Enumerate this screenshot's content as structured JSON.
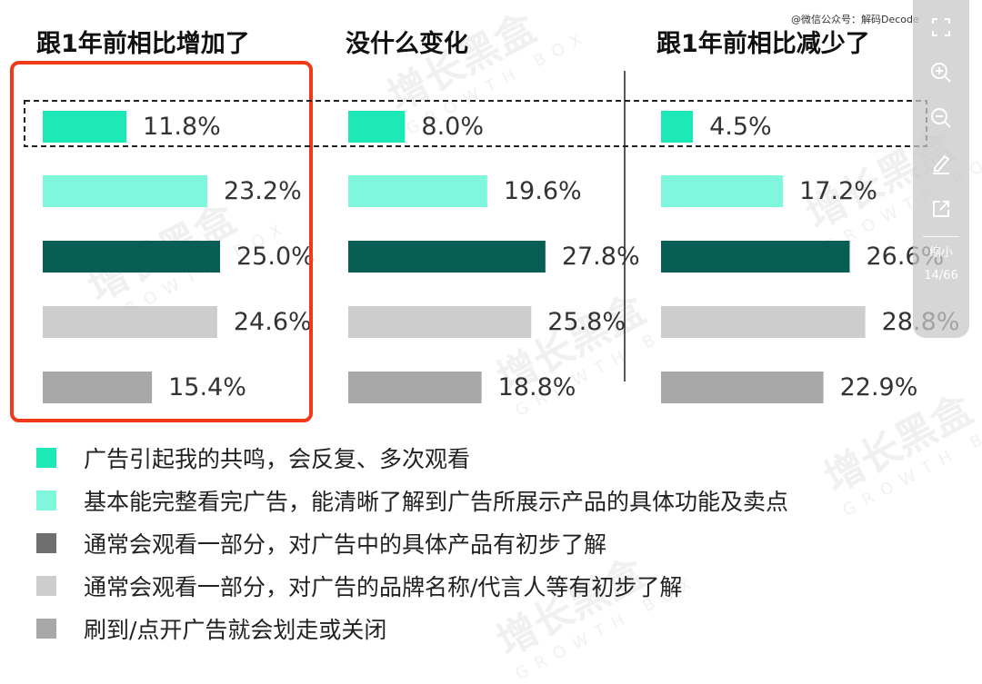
{
  "credit_text": "@微信公众号：解码Decode",
  "watermark": {
    "cn": "增长黑盒",
    "en": "GROWTH BOX"
  },
  "viewer": {
    "shrink_label": "缩小",
    "page_indicator": "14/66"
  },
  "chart_data": {
    "type": "bar",
    "orientation": "horizontal",
    "value_unit": "%",
    "panels": [
      {
        "title": "跟1年前相比增加了",
        "values": [
          11.8,
          23.2,
          25.0,
          24.6,
          15.4
        ]
      },
      {
        "title": "没什么变化",
        "values": [
          8.0,
          19.6,
          27.8,
          25.8,
          18.8
        ]
      },
      {
        "title": "跟1年前相比减少了",
        "values": [
          4.5,
          17.2,
          26.6,
          28.8,
          22.9
        ]
      }
    ],
    "value_labels": [
      [
        "11.8%",
        "23.2%",
        "25.0%",
        "24.6%",
        "15.4%"
      ],
      [
        "8.0%",
        "19.6%",
        "27.8%",
        "25.8%",
        "18.8%"
      ],
      [
        "4.5%",
        "17.2%",
        "26.6%",
        "28.8%",
        "22.9%"
      ]
    ],
    "series": [
      {
        "name": "广告引起我的共鸣，会反复、多次观看",
        "color": "#1de9b6"
      },
      {
        "name": "基本能完整看完广告，能清晰了解到广告所展示产品的具体功能及卖点",
        "color": "#7ff7dc"
      },
      {
        "name": "通常会观看一部分，对广告中的具体产品有初步了解",
        "color": "#075e54",
        "legend_color": "#6f6f6f"
      },
      {
        "name": "通常会观看一部分，对广告的品牌名称/代言人等有初步了解",
        "color": "#cdcdcd"
      },
      {
        "name": "刷到/点开广告就会划走或关闭",
        "color": "#a8a8a8"
      }
    ],
    "highlights": [
      {
        "type": "outline",
        "target": "panel 1",
        "color": "#f03a17"
      },
      {
        "type": "dashed-box",
        "target": "series 1 across all panels",
        "color": "#222222"
      }
    ],
    "legend_position": "bottom",
    "grid": false
  }
}
